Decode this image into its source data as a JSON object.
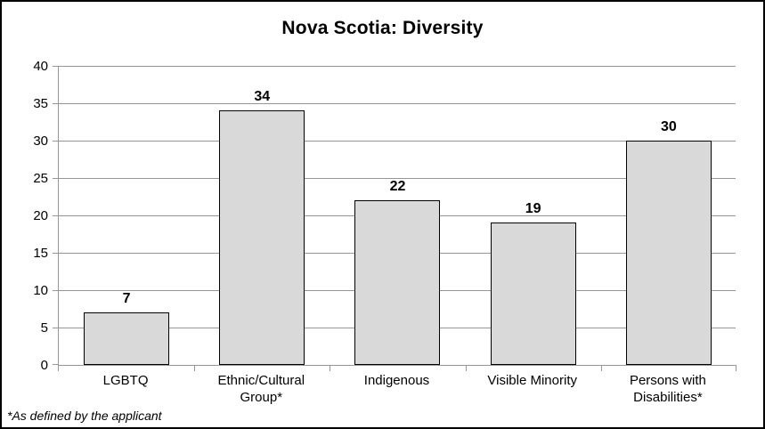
{
  "chart_data": {
    "type": "bar",
    "title": "Nova Scotia: Diversity",
    "categories": [
      "LGBTQ",
      "Ethnic/Cultural Group*",
      "Indigenous",
      "Visible Minority",
      "Persons with Disabilities*"
    ],
    "values": [
      7,
      34,
      22,
      19,
      30
    ],
    "xlabel": "",
    "ylabel": "",
    "ylim": [
      0,
      40
    ],
    "ytick_step": 5,
    "ytick_labels": [
      "0",
      "5",
      "10",
      "15",
      "20",
      "25",
      "30",
      "35",
      "40"
    ],
    "grid": true,
    "legend_position": "none",
    "bar_fill_color": "#d9d9d9",
    "bar_border_color": "#000000",
    "grid_color": "#969696",
    "text_color": "#000000"
  },
  "footnote": "*As defined by the applicant"
}
